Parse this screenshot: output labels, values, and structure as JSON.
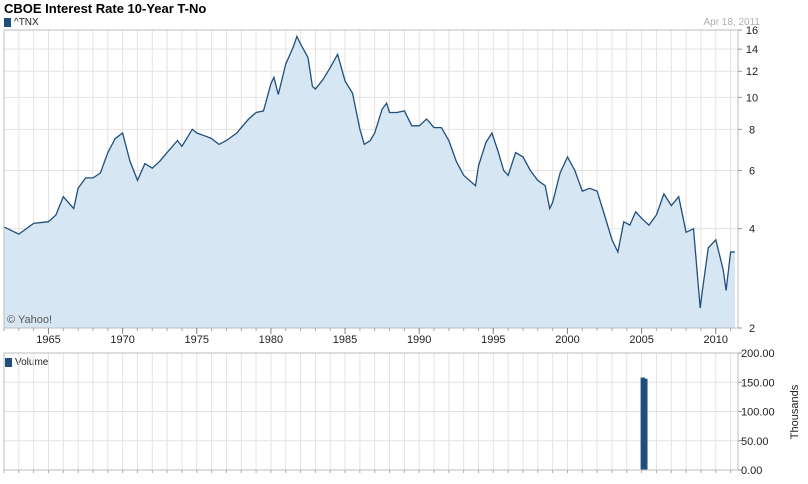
{
  "header": {
    "title": "CBOE Interest Rate 10-Year T-No",
    "date": "Apr 18, 2011",
    "copyright": "© Yahoo!"
  },
  "colors": {
    "line": "#1f4f7d",
    "area": "#d6e6f2",
    "grid": "#e3e3e3",
    "volume_bar": "#1f4f7d"
  },
  "chart_data": [
    {
      "type": "area",
      "series": [
        {
          "name": "^TNX",
          "x": [
            1962.0,
            1963.0,
            1964.0,
            1965.0,
            1965.5,
            1966.0,
            1966.7,
            1967.0,
            1967.5,
            1968.0,
            1968.5,
            1969.0,
            1969.5,
            1970.0,
            1970.5,
            1971.0,
            1971.5,
            1972.0,
            1972.5,
            1973.0,
            1973.7,
            1974.0,
            1974.7,
            1975.0,
            1975.7,
            1976.0,
            1976.5,
            1977.0,
            1977.7,
            1978.0,
            1978.5,
            1979.0,
            1979.5,
            1980.0,
            1980.2,
            1980.5,
            1981.0,
            1981.5,
            1981.75,
            1982.0,
            1982.5,
            1982.8,
            1983.0,
            1983.5,
            1984.0,
            1984.5,
            1985.0,
            1985.5,
            1986.0,
            1986.3,
            1986.7,
            1987.0,
            1987.5,
            1987.8,
            1988.0,
            1988.5,
            1989.0,
            1989.5,
            1990.0,
            1990.5,
            1991.0,
            1991.5,
            1992.0,
            1992.5,
            1993.0,
            1993.8,
            1994.0,
            1994.5,
            1994.9,
            1995.3,
            1995.7,
            1996.0,
            1996.5,
            1997.0,
            1997.5,
            1998.0,
            1998.5,
            1998.8,
            1999.0,
            1999.5,
            2000.0,
            2000.5,
            2001.0,
            2001.5,
            2002.0,
            2002.5,
            2003.0,
            2003.4,
            2003.8,
            2004.2,
            2004.6,
            2005.0,
            2005.5,
            2006.0,
            2006.5,
            2007.0,
            2007.5,
            2008.0,
            2008.5,
            2008.95,
            2009.1,
            2009.5,
            2010.0,
            2010.5,
            2010.7,
            2011.0,
            2011.3
          ],
          "values": [
            4.05,
            3.85,
            4.15,
            4.2,
            4.4,
            5.0,
            4.6,
            5.3,
            5.7,
            5.7,
            5.9,
            6.8,
            7.5,
            7.8,
            6.4,
            5.6,
            6.3,
            6.1,
            6.4,
            6.8,
            7.4,
            7.1,
            8.0,
            7.8,
            7.6,
            7.5,
            7.2,
            7.4,
            7.8,
            8.1,
            8.6,
            9.0,
            9.1,
            11.0,
            11.5,
            10.2,
            12.6,
            14.2,
            15.3,
            14.5,
            13.2,
            10.8,
            10.6,
            11.3,
            12.3,
            13.5,
            11.2,
            10.3,
            8.0,
            7.2,
            7.4,
            7.8,
            9.2,
            9.6,
            9.0,
            9.0,
            9.1,
            8.2,
            8.2,
            8.6,
            8.1,
            8.1,
            7.4,
            6.4,
            5.8,
            5.4,
            6.2,
            7.3,
            7.8,
            6.9,
            6.0,
            5.8,
            6.8,
            6.6,
            6.0,
            5.6,
            5.4,
            4.6,
            4.8,
            5.9,
            6.6,
            6.0,
            5.2,
            5.3,
            5.2,
            4.4,
            3.7,
            3.4,
            4.2,
            4.1,
            4.5,
            4.3,
            4.1,
            4.4,
            5.1,
            4.7,
            5.0,
            3.9,
            4.0,
            2.3,
            2.6,
            3.5,
            3.7,
            3.0,
            2.6,
            3.4,
            3.4
          ]
        }
      ],
      "ylim": [
        2,
        16
      ],
      "yscale": "log",
      "yticks": [
        2,
        4,
        6,
        8,
        10,
        12,
        14,
        16
      ],
      "xlim": [
        1962.0,
        2011.5
      ],
      "xticks": [
        1965,
        1970,
        1975,
        1980,
        1985,
        1990,
        1995,
        2000,
        2005,
        2010
      ],
      "legend": "top-left",
      "grid": true
    },
    {
      "type": "bar",
      "series": [
        {
          "name": "Volume",
          "x": [
            2005.08,
            2005.25
          ],
          "values": [
            158,
            156
          ]
        }
      ],
      "ylabel": "Thousands",
      "ylim": [
        0,
        200
      ],
      "yticks": [
        "0.00",
        "50.00",
        "100.00",
        "150.00",
        "200.00"
      ],
      "xlim": [
        1962.0,
        2011.5
      ],
      "legend": "top-left",
      "grid": true
    }
  ]
}
